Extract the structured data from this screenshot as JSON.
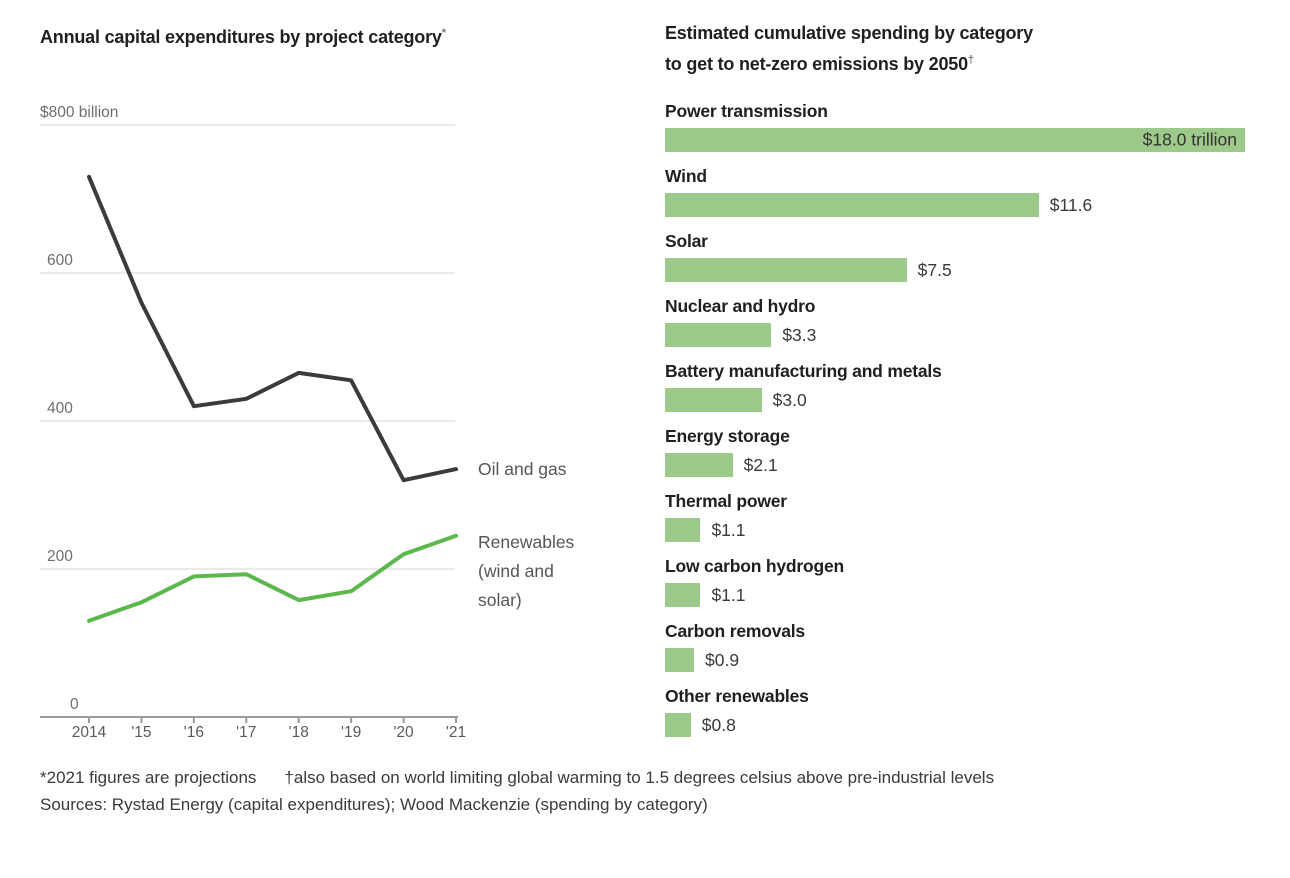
{
  "colors": {
    "title_text": "#1f1f1f",
    "axis_label_gray": "#6e6e6e",
    "gridline": "#e4e4e4",
    "axis_line": "#9a9a9a",
    "oil_line": "#3b3b3b",
    "renewables_line": "#5cb84c",
    "bar_green": "#9dca8b",
    "value_text": "#3a3a3a"
  },
  "left_chart": {
    "title": "Annual capital expenditures by project category",
    "title_marker": "*"
  },
  "right_chart": {
    "title_line1": "Estimated cumulative spending by category",
    "title_line2": "to get to net-zero emissions by 2050",
    "title_marker": "†"
  },
  "footnotes": {
    "note1": "*2021 figures are projections",
    "note2": "†also based on world limiting global warming to 1.5 degrees celsius above pre-industrial levels",
    "sources": "Sources: Rystad Energy (capital expenditures); Wood Mackenzie (spending by category)"
  },
  "chart_data": [
    {
      "type": "line",
      "title": "Annual capital expenditures by project category*",
      "unit_label": "$800 billion",
      "x": [
        2014,
        2015,
        2016,
        2017,
        2018,
        2019,
        2020,
        2021
      ],
      "x_tick_labels": [
        "2014",
        "'15",
        "'16",
        "'17",
        "'18",
        "'19",
        "'20",
        "'21"
      ],
      "y_ticks": [
        800,
        600,
        400,
        200,
        0
      ],
      "y_tick_labels": [
        "$800 billion",
        "600",
        "400",
        "200",
        "0"
      ],
      "ylim": [
        0,
        800
      ],
      "grid": true,
      "legend": "end-of-line labels",
      "series": [
        {
          "name": "Oil and gas",
          "color": "#3b3b3b",
          "values": [
            730,
            560,
            420,
            430,
            465,
            455,
            320,
            335
          ]
        },
        {
          "name": "Renewables (wind and solar)",
          "label_lines": [
            "Renewables",
            "(wind and",
            "solar)"
          ],
          "color": "#5cb84c",
          "values": [
            130,
            155,
            190,
            193,
            158,
            170,
            220,
            245
          ]
        }
      ]
    },
    {
      "type": "bar",
      "orientation": "horizontal",
      "title": "Estimated cumulative spending by category to get to net-zero emissions by 2050†",
      "xlim": [
        0,
        18
      ],
      "bar_color": "#9dca8b",
      "bars": [
        {
          "label": "Power transmission",
          "value": 18.0,
          "value_label": "$18.0 trillion",
          "value_position": "inside"
        },
        {
          "label": "Wind",
          "value": 11.6,
          "value_label": "$11.6",
          "value_position": "outside"
        },
        {
          "label": "Solar",
          "value": 7.5,
          "value_label": "$7.5",
          "value_position": "outside"
        },
        {
          "label": "Nuclear and hydro",
          "value": 3.3,
          "value_label": "$3.3",
          "value_position": "outside"
        },
        {
          "label": "Battery manufacturing and metals",
          "value": 3.0,
          "value_label": "$3.0",
          "value_position": "outside"
        },
        {
          "label": "Energy storage",
          "value": 2.1,
          "value_label": "$2.1",
          "value_position": "outside"
        },
        {
          "label": "Thermal power",
          "value": 1.1,
          "value_label": "$1.1",
          "value_position": "outside"
        },
        {
          "label": "Low carbon hydrogen",
          "value": 1.1,
          "value_label": "$1.1",
          "value_position": "outside"
        },
        {
          "label": "Carbon removals",
          "value": 0.9,
          "value_label": "$0.9",
          "value_position": "outside"
        },
        {
          "label": "Other renewables",
          "value": 0.8,
          "value_label": "$0.8",
          "value_position": "outside"
        }
      ]
    }
  ]
}
